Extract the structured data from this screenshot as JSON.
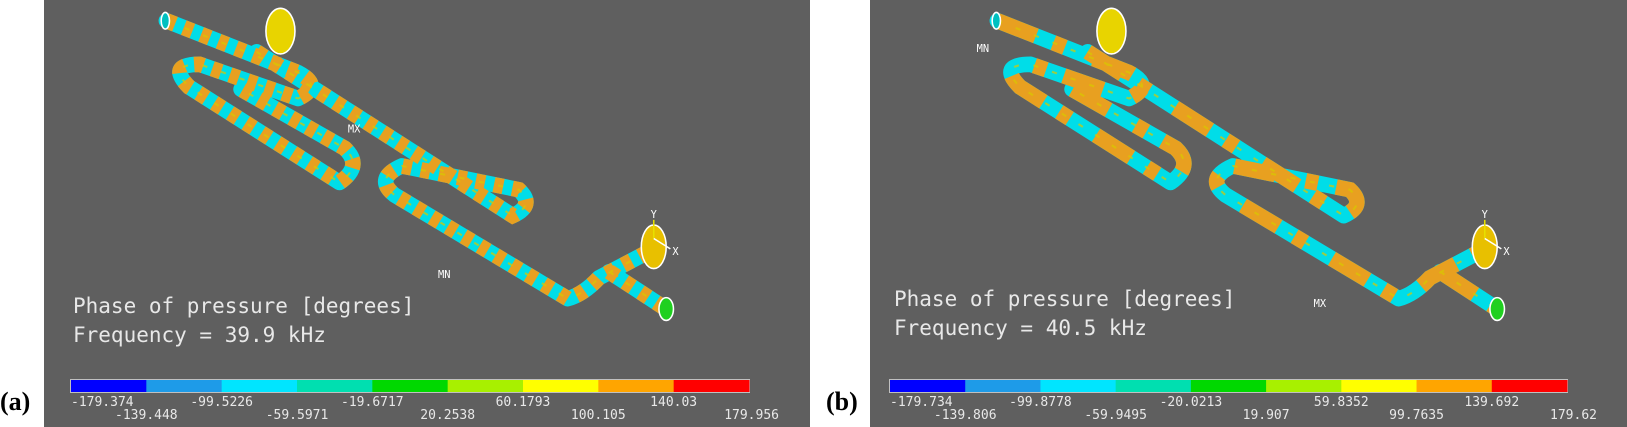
{
  "panels": [
    {
      "label": "(a)",
      "title": "Phase of pressure [degrees]",
      "frequency": "Frequency = 39.9 kHz",
      "colorbar_labels": [
        -179.374,
        -139.448,
        -99.5226,
        -59.5971,
        -19.6717,
        20.2538,
        60.1793,
        100.105,
        140.03,
        179.956
      ],
      "max_marker": "MX",
      "min_marker": "MN",
      "axis_y": "Y",
      "axis_x": "X"
    },
    {
      "label": "(b)",
      "title": "Phase of pressure [degrees]",
      "frequency": "Frequency = 40.5 kHz",
      "colorbar_labels": [
        -179.734,
        -139.806,
        -99.8778,
        -59.9495,
        -20.0213,
        19.907,
        59.8352,
        99.7635,
        139.692,
        179.62
      ],
      "max_marker": "MX",
      "min_marker": "MN",
      "axis_y": "Y",
      "axis_x": "X"
    }
  ],
  "colorbar_colors": [
    "#0000ff",
    "#1e9be8",
    "#00e5ff",
    "#00dfb0",
    "#00d800",
    "#a8f000",
    "#ffff00",
    "#ffa500",
    "#ff0000"
  ]
}
